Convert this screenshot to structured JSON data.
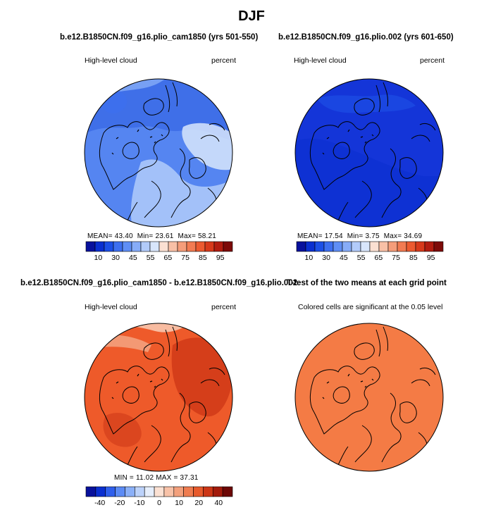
{
  "main_title": "DJF",
  "panels": [
    {
      "title": "b.e12.B1850CN.f09_g16.plio_cam1850 (yrs 501-550)",
      "left_label": "High-level cloud",
      "right_label": "percent",
      "stats": {
        "mean_label": "MEAN=",
        "mean": "43.40",
        "min_label": "Min=",
        "min": "23.61",
        "max_label": "Max=",
        "max": "58.21"
      }
    },
    {
      "title": "b.e12.B1850CN.f09_g16.plio.002 (yrs 601-650)",
      "left_label": "High-level cloud",
      "right_label": "percent",
      "stats": {
        "mean_label": "MEAN=",
        "mean": "17.54",
        "min_label": "Min=",
        "min": "3.75",
        "max_label": "Max=",
        "max": "34.69"
      }
    },
    {
      "title": "b.e12.B1850CN.f09_g16.plio_cam1850 - b.e12.B1850CN.f09_g16.plio.002",
      "left_label": "High-level cloud",
      "right_label": "percent",
      "stats": {
        "min_label": "MIN =",
        "min": "11.02",
        "max_label": "MAX =",
        "max": "37.31"
      }
    },
    {
      "title": "T-test of the two means at each grid point",
      "caption": "Colored cells are significant at the 0.05 level"
    }
  ],
  "chart_data": [
    {
      "type": "heatmap",
      "title": "b.e12.B1850CN.f09_g16.plio_cam1850 (yrs 501-550)",
      "variable": "High-level cloud",
      "units": "percent",
      "projection": "north polar stereographic",
      "mean": 43.4,
      "min": 23.61,
      "max": 58.21,
      "colorbar_levels": [
        5,
        10,
        15,
        20,
        25,
        30,
        35,
        40,
        45,
        50,
        55,
        60,
        65,
        70,
        75,
        80,
        85,
        90,
        95
      ],
      "colorbar_tick_labels": [
        "10",
        "30",
        "45",
        "55",
        "65",
        "75",
        "85",
        "95"
      ]
    },
    {
      "type": "heatmap",
      "title": "b.e12.B1850CN.f09_g16.plio.002 (yrs 601-650)",
      "variable": "High-level cloud",
      "units": "percent",
      "projection": "north polar stereographic",
      "mean": 17.54,
      "min": 3.75,
      "max": 34.69,
      "colorbar_levels": [
        5,
        10,
        15,
        20,
        25,
        30,
        35,
        40,
        45,
        50,
        55,
        60,
        65,
        70,
        75,
        80,
        85,
        90,
        95
      ],
      "colorbar_tick_labels": [
        "10",
        "30",
        "45",
        "55",
        "65",
        "75",
        "85",
        "95"
      ]
    },
    {
      "type": "heatmap",
      "title": "b.e12.B1850CN.f09_g16.plio_cam1850 - b.e12.B1850CN.f09_g16.plio.002",
      "variable": "High-level cloud",
      "units": "percent",
      "projection": "north polar stereographic",
      "min": 11.02,
      "max": 37.31,
      "colorbar_levels": [
        -50,
        -40,
        -30,
        -20,
        -15,
        -10,
        -5,
        0,
        5,
        10,
        15,
        20,
        30,
        40,
        50
      ],
      "colorbar_tick_labels": [
        "-40",
        "-20",
        "-10",
        "0",
        "10",
        "20",
        "40"
      ]
    },
    {
      "type": "heatmap",
      "title": "T-test of the two means at each grid point",
      "caption": "Colored cells are significant at the 0.05 level",
      "projection": "north polar stereographic"
    }
  ],
  "colors": {
    "scale": [
      "#08119c",
      "#0a2fd0",
      "#1c4fe6",
      "#3d6ff0",
      "#5f8ef5",
      "#87acf8",
      "#b2cbfa",
      "#d8e6fb",
      "#fbe0d2",
      "#f8c0a6",
      "#f59d7a",
      "#f27b52",
      "#ec5a30",
      "#d7391b",
      "#b21c10",
      "#7d0a08"
    ],
    "diff_scale": [
      "#08119c",
      "#0a2fd0",
      "#2f5fec",
      "#5c8bf5",
      "#8bb0f8",
      "#bcd2fa",
      "#e6eefb",
      "#fbe1d3",
      "#f8c2a8",
      "#f3a07c",
      "#ef7c50",
      "#e75a2c",
      "#cc3616",
      "#a31b0c",
      "#6d0806"
    ],
    "panel1_base": "#3f6fe8",
    "panel2_base": "#1435d8",
    "panel3_base": "#ee5a2a",
    "panel4_base": "#f47b45",
    "coast": "#000000"
  }
}
